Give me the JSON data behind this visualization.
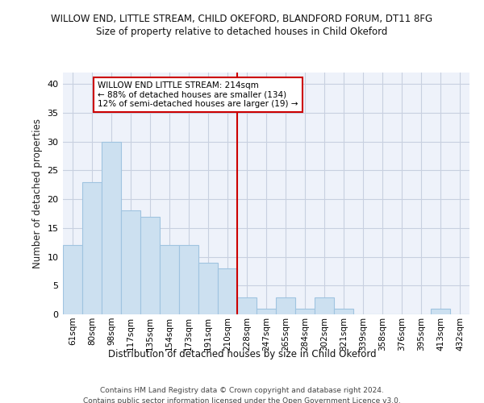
{
  "title_line1": "WILLOW END, LITTLE STREAM, CHILD OKEFORD, BLANDFORD FORUM, DT11 8FG",
  "title_line2": "Size of property relative to detached houses in Child Okeford",
  "xlabel": "Distribution of detached houses by size in Child Okeford",
  "ylabel": "Number of detached properties",
  "categories": [
    "61sqm",
    "80sqm",
    "98sqm",
    "117sqm",
    "135sqm",
    "154sqm",
    "173sqm",
    "191sqm",
    "210sqm",
    "228sqm",
    "247sqm",
    "265sqm",
    "284sqm",
    "302sqm",
    "321sqm",
    "339sqm",
    "358sqm",
    "376sqm",
    "395sqm",
    "413sqm",
    "432sqm"
  ],
  "values": [
    12,
    23,
    30,
    18,
    17,
    12,
    12,
    9,
    8,
    3,
    1,
    3,
    1,
    3,
    1,
    0,
    0,
    0,
    0,
    1,
    0
  ],
  "bar_color": "#cce0f0",
  "bar_edgecolor": "#a0c4e0",
  "vline_x": 8.5,
  "vline_color": "#cc0000",
  "annotation_text": "WILLOW END LITTLE STREAM: 214sqm\n← 88% of detached houses are smaller (134)\n12% of semi-detached houses are larger (19) →",
  "annotation_box_color": "#ffffff",
  "annotation_box_edgecolor": "#cc0000",
  "ylim": [
    0,
    42
  ],
  "yticks": [
    0,
    5,
    10,
    15,
    20,
    25,
    30,
    35,
    40
  ],
  "grid_color": "#c8d0e0",
  "bg_color": "#eef2fa",
  "footer_line1": "Contains HM Land Registry data © Crown copyright and database right 2024.",
  "footer_line2": "Contains public sector information licensed under the Open Government Licence v3.0."
}
